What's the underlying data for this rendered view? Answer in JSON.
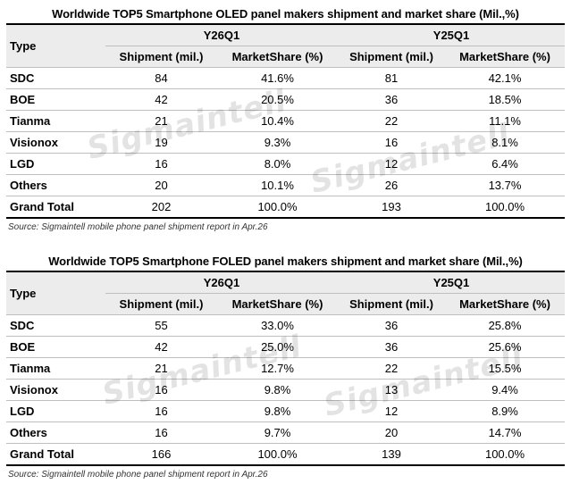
{
  "tables": [
    {
      "title": "Worldwide TOP5 Smartphone OLED panel makers shipment and market share (Mil.,%)",
      "type_label": "Type",
      "period_a": "Y26Q1",
      "period_b": "Y25Q1",
      "col_shipment": "Shipment (mil.)",
      "col_share": "MarketShare (%)",
      "rows": [
        {
          "name": "SDC",
          "a_ship": "84",
          "a_share": "41.6%",
          "b_ship": "81",
          "b_share": "42.1%"
        },
        {
          "name": "BOE",
          "a_ship": "42",
          "a_share": "20.5%",
          "b_ship": "36",
          "b_share": "18.5%"
        },
        {
          "name": "Tianma",
          "a_ship": "21",
          "a_share": "10.4%",
          "b_ship": "22",
          "b_share": "11.1%"
        },
        {
          "name": "Visionox",
          "a_ship": "19",
          "a_share": "9.3%",
          "b_ship": "16",
          "b_share": "8.1%"
        },
        {
          "name": "LGD",
          "a_ship": "16",
          "a_share": "8.0%",
          "b_ship": "12",
          "b_share": "6.4%"
        },
        {
          "name": "Others",
          "a_ship": "20",
          "a_share": "10.1%",
          "b_ship": "26",
          "b_share": "13.7%"
        },
        {
          "name": "Grand Total",
          "a_ship": "202",
          "a_share": "100.0%",
          "b_ship": "193",
          "b_share": "100.0%"
        }
      ],
      "source": "Source: Sigmaintell mobile phone panel shipment report in Apr.26"
    },
    {
      "title": "Worldwide TOP5 Smartphone FOLED panel makers shipment and market share (Mil.,%)",
      "type_label": "Type",
      "period_a": "Y26Q1",
      "period_b": "Y25Q1",
      "col_shipment": "Shipment (mil.)",
      "col_share": "MarketShare (%)",
      "rows": [
        {
          "name": "SDC",
          "a_ship": "55",
          "a_share": "33.0%",
          "b_ship": "36",
          "b_share": "25.8%"
        },
        {
          "name": "BOE",
          "a_ship": "42",
          "a_share": "25.0%",
          "b_ship": "36",
          "b_share": "25.6%"
        },
        {
          "name": "Tianma",
          "a_ship": "21",
          "a_share": "12.7%",
          "b_ship": "22",
          "b_share": "15.5%"
        },
        {
          "name": "Visionox",
          "a_ship": "16",
          "a_share": "9.8%",
          "b_ship": "13",
          "b_share": "9.4%"
        },
        {
          "name": "LGD",
          "a_ship": "16",
          "a_share": "9.8%",
          "b_ship": "12",
          "b_share": "8.9%"
        },
        {
          "name": "Others",
          "a_ship": "16",
          "a_share": "9.7%",
          "b_ship": "20",
          "b_share": "14.7%"
        },
        {
          "name": "Grand Total",
          "a_ship": "166",
          "a_share": "100.0%",
          "b_ship": "139",
          "b_share": "100.0%"
        }
      ],
      "source": "Source: Sigmaintell mobile phone panel shipment report in Apr.26"
    }
  ],
  "watermark": "Sigmaintell"
}
